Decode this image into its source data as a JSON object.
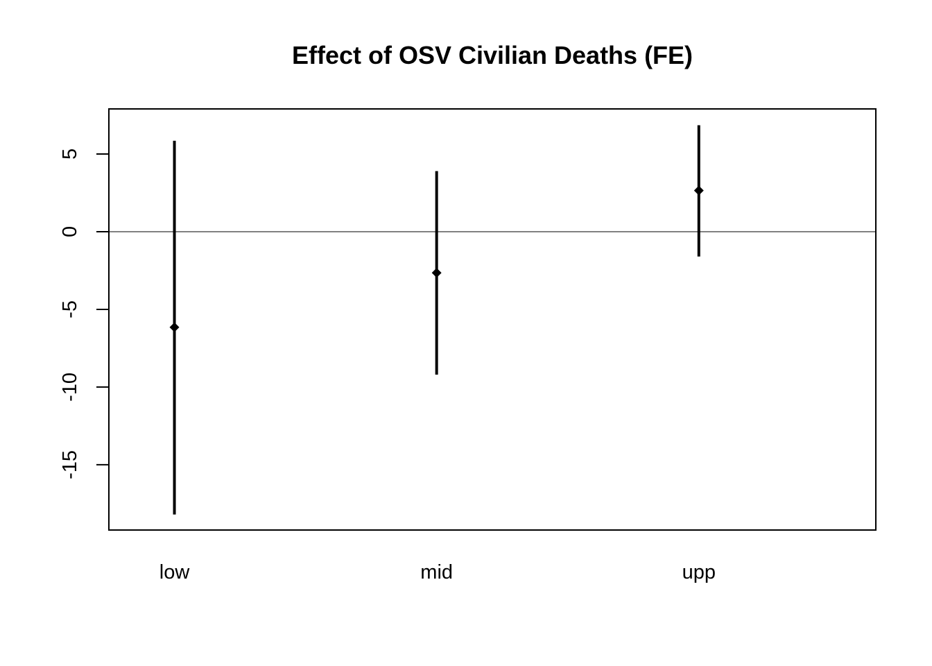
{
  "chart_data": {
    "type": "scatter",
    "subtype": "point-estimate with confidence intervals",
    "title": "Effect of OSV Civilian Deaths (FE)",
    "xlabel": "",
    "ylabel": "",
    "categories": [
      "low",
      "mid",
      "upp"
    ],
    "series": [
      {
        "estimates": [
          -6.15,
          -2.65,
          2.65
        ],
        "lower": [
          -18.2,
          -9.2,
          -1.6
        ],
        "upper": [
          5.85,
          3.9,
          6.85
        ]
      }
    ],
    "yticks": [
      -15,
      -10,
      -5,
      0,
      5
    ],
    "ylim": [
      -19.2,
      7.9
    ],
    "reference_line": 0,
    "grid": false,
    "legend": "none",
    "colors": {
      "marks": "#000000",
      "axis": "#000000",
      "background": "#ffffff"
    }
  }
}
